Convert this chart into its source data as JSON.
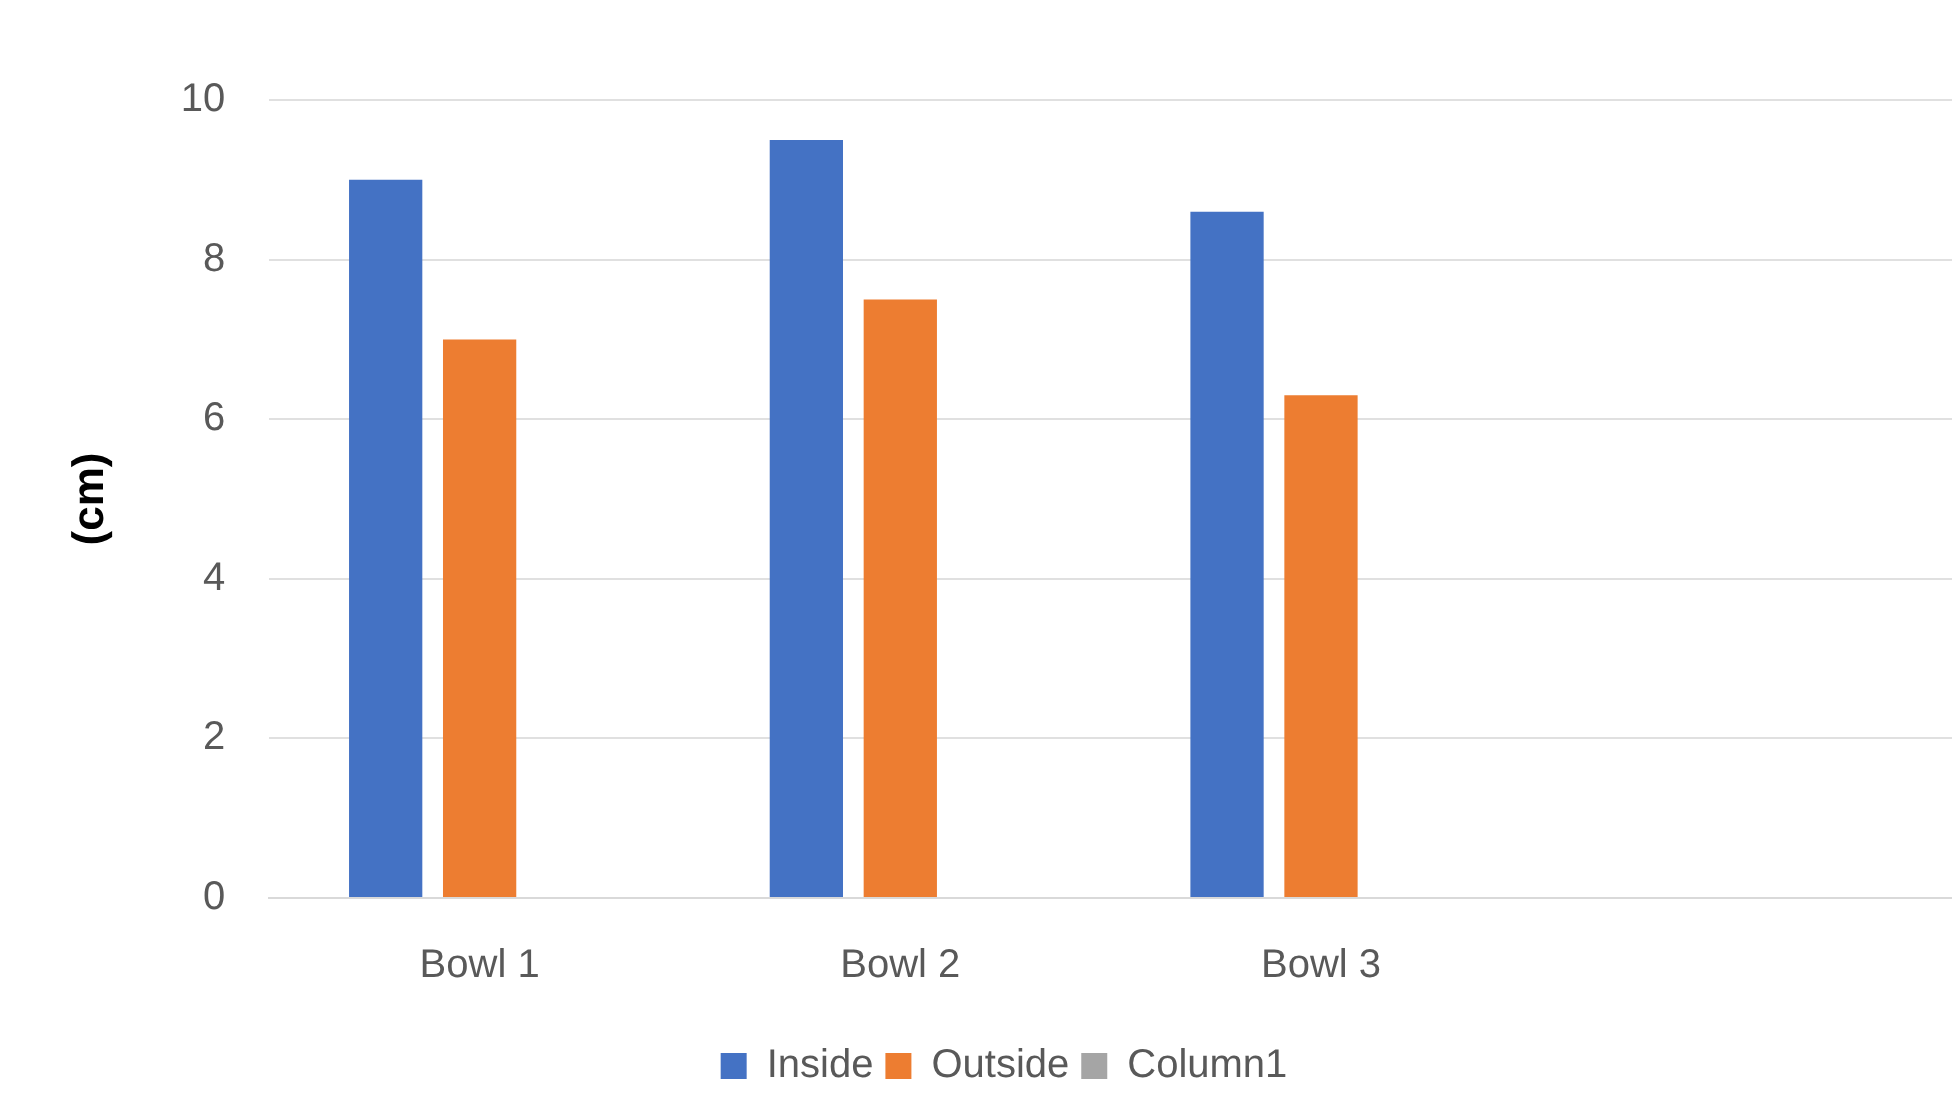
{
  "chart_data": {
    "type": "bar",
    "ylabel": "(cm)",
    "categories": [
      "Bowl 1",
      "Bowl 2",
      "Bowl 3",
      null
    ],
    "series": [
      {
        "name": "Inside",
        "color": "#4472c4",
        "values": [
          9,
          9.5,
          8.6,
          null
        ]
      },
      {
        "name": "Outside",
        "color": "#ed7d31",
        "values": [
          7,
          7.5,
          6.3,
          null
        ]
      },
      {
        "name": "Column1",
        "color": "#a5a5a5",
        "values": [
          null,
          null,
          null,
          null
        ]
      }
    ],
    "ylim": [
      0,
      10
    ],
    "yticks": [
      0,
      2,
      4,
      6,
      8,
      10
    ],
    "grid": "y",
    "legend": "bottom"
  }
}
